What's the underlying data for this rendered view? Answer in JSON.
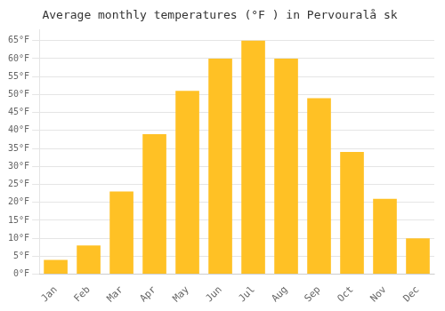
{
  "chart_data": {
    "type": "bar",
    "title": "Average monthly temperatures (°F ) in Pervouralå sk",
    "categories": [
      "Jan",
      "Feb",
      "Mar",
      "Apr",
      "May",
      "Jun",
      "Jul",
      "Aug",
      "Sep",
      "Oct",
      "Nov",
      "Dec"
    ],
    "values": [
      4,
      8,
      23,
      39,
      51,
      60,
      65,
      60,
      49,
      34,
      21,
      10
    ],
    "color": "#FFC125",
    "ylim": [
      0,
      68
    ],
    "yticks": [
      {
        "value": 0,
        "label": "0°F"
      },
      {
        "value": 5,
        "label": "5°F"
      },
      {
        "value": 10,
        "label": "10°F"
      },
      {
        "value": 15,
        "label": "15°F"
      },
      {
        "value": 20,
        "label": "20°F"
      },
      {
        "value": 25,
        "label": "25°F"
      },
      {
        "value": 30,
        "label": "30°F"
      },
      {
        "value": 35,
        "label": "35°F"
      },
      {
        "value": 40,
        "label": "40°F"
      },
      {
        "value": 45,
        "label": "45°F"
      },
      {
        "value": 50,
        "label": "50°F"
      },
      {
        "value": 55,
        "label": "55°F"
      },
      {
        "value": 60,
        "label": "60°F"
      },
      {
        "value": 65,
        "label": "65°F"
      }
    ],
    "grid": true
  }
}
